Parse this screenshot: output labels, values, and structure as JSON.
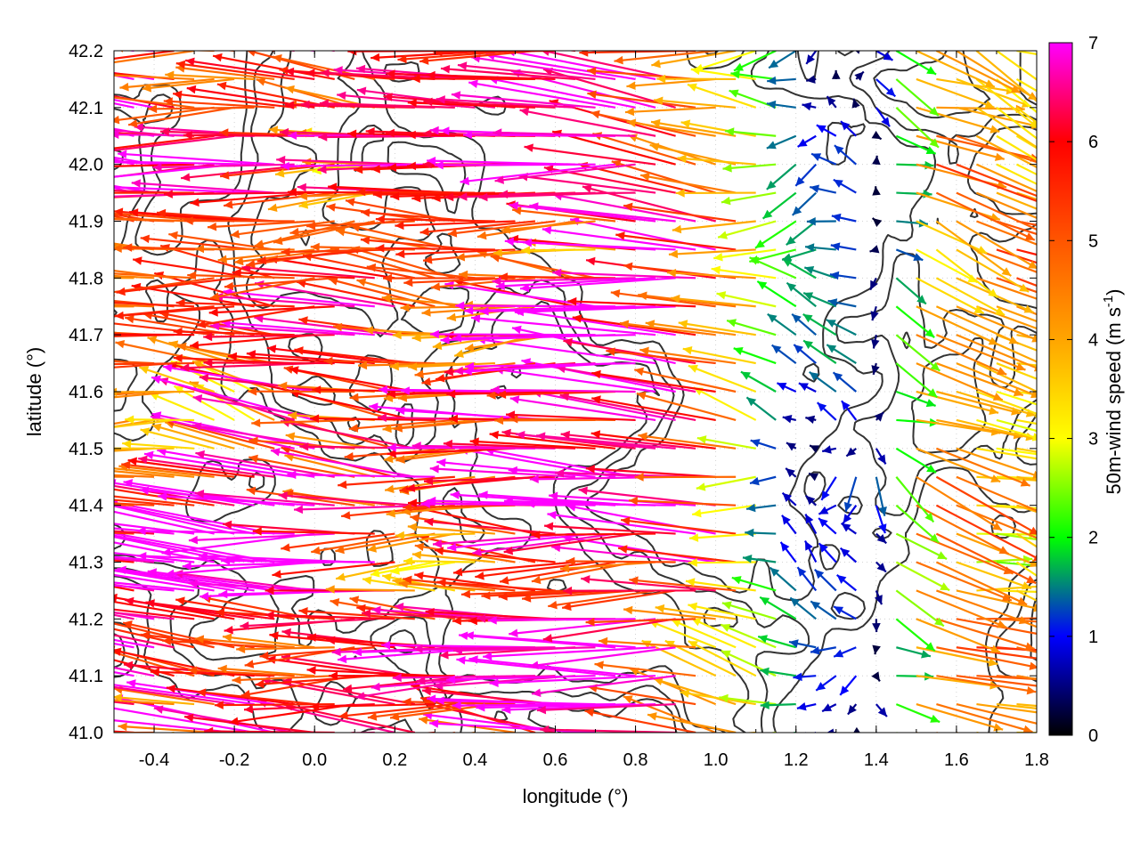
{
  "chart_data": {
    "type": "vector_field",
    "xlabel": "longitude (°)",
    "ylabel": "latitude (°)",
    "xlim": [
      -0.5,
      1.8
    ],
    "ylim": [
      41.0,
      42.2
    ],
    "x_ticks": [
      -0.4,
      -0.2,
      0.0,
      0.2,
      0.4,
      0.6,
      0.8,
      1.0,
      1.2,
      1.4,
      1.6,
      1.8
    ],
    "x_tick_labels": [
      "-0.4",
      "-0.2",
      "0.0",
      "0.2",
      "0.4",
      "0.6",
      "0.8",
      "1.0",
      "1.2",
      "1.4",
      "1.6",
      "1.8"
    ],
    "y_ticks": [
      41.0,
      41.1,
      41.2,
      41.3,
      41.4,
      41.5,
      41.6,
      41.7,
      41.8,
      41.9,
      42.0,
      42.1,
      42.2
    ],
    "y_tick_labels": [
      "41.0",
      "41.1",
      "41.2",
      "41.3",
      "41.4",
      "41.5",
      "41.6",
      "41.7",
      "41.8",
      "41.9",
      "42.0",
      "42.1",
      "42.2"
    ],
    "grid": true,
    "colorbar": {
      "label": "50m-wind speed (m s",
      "label_superscript": "-1",
      "label_suffix": ")",
      "range": [
        0,
        7
      ],
      "ticks": [
        0,
        1,
        2,
        3,
        4,
        5,
        6,
        7
      ],
      "tick_labels": [
        "0",
        "1",
        "2",
        "3",
        "4",
        "5",
        "6",
        "7"
      ],
      "colors": [
        "#000000",
        "#0000ff",
        "#00ff00",
        "#ffff00",
        "#ffa500",
        "#ff5500",
        "#ff0000",
        "#ff00ff"
      ]
    },
    "contour_color": "#333333",
    "grid_spacing_deg": [
      0.05,
      0.05
    ],
    "wind_field": {
      "west_background": {
        "u": -6.5,
        "v": 0.3
      },
      "east_background": {
        "u": 4.5,
        "v": -1.0
      },
      "east_onset_lon": 1.35
    }
  }
}
